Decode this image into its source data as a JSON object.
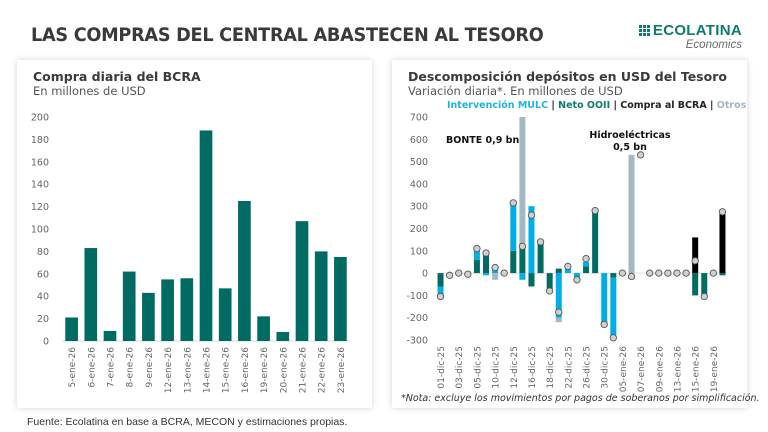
{
  "header": {
    "title": "LAS COMPRAS DEL CENTRAL ABASTECEN AL TESORO",
    "logo_main": "ECOLATINA",
    "logo_sub": "Economics"
  },
  "footer": {
    "source": "Fuente: Ecolatina en base a BCRA, MECON y estimaciones propias."
  },
  "colors": {
    "teal": "#006b62",
    "mulc": "#00aee6",
    "otros": "#a3b9c1",
    "bcra": "#000000",
    "dot": "#d0d0d0"
  },
  "chart_data": [
    {
      "type": "bar",
      "title": "Compra diaria del BCRA",
      "subtitle": "En millones de USD",
      "xlabel": "",
      "ylabel": "",
      "ylim": [
        0,
        200
      ],
      "yticks": [
        0,
        20,
        40,
        60,
        80,
        100,
        120,
        140,
        160,
        180,
        200
      ],
      "grid": false,
      "categories": [
        "5-ene-26",
        "6-ene-26",
        "7-ene-26",
        "8-ene-26",
        "9-ene-26",
        "12-ene-26",
        "13-ene-26",
        "14-ene-26",
        "15-ene-26",
        "16-ene-26",
        "19-ene-26",
        "20-ene-26",
        "21-ene-26",
        "22-ene-26",
        "23-ene-26"
      ],
      "values": [
        21,
        83,
        9,
        62,
        43,
        55,
        56,
        188,
        47,
        125,
        22,
        8,
        107,
        80,
        75
      ]
    },
    {
      "type": "bar",
      "stacked": true,
      "title": "Descomposición depósitos en USD del Tesoro",
      "subtitle": "Variación diaria*. En millones de USD",
      "legend_position": "top",
      "legend": [
        {
          "name": "Intervención MULC",
          "color": "#00aee6"
        },
        {
          "name": "Neto OOII",
          "color": "#006b62"
        },
        {
          "name": "Compra al BCRA",
          "color": "#111111"
        },
        {
          "name": "Otros",
          "color": "#a3b9c1"
        }
      ],
      "separator": "|",
      "ylim": [
        -300,
        700
      ],
      "yticks": [
        -300,
        -200,
        -100,
        0,
        100,
        200,
        300,
        400,
        500,
        600,
        700
      ],
      "grid": false,
      "x_tick_labels": [
        "01-dic-25",
        "03-dic-25",
        "05-dic-25",
        "10-dic-25",
        "12-dic-25",
        "16-dic-25",
        "18-dic-25",
        "22-dic-25",
        "26-dic-25",
        "30-dic-25",
        "05-ene-26",
        "07-ene-26",
        "09-ene-26",
        "13-ene-26",
        "15-ene-26",
        "19-ene-26"
      ],
      "series": [
        {
          "name": "Neto OOII",
          "values": [
            -60,
            0,
            0,
            0,
            60,
            100,
            0,
            0,
            100,
            120,
            -60,
            140,
            -80,
            20,
            0,
            0,
            30,
            280,
            0,
            -20,
            0,
            0,
            0,
            0,
            0,
            0,
            0,
            0,
            -100,
            -100,
            0,
            -10
          ]
        },
        {
          "name": "Intervención MULC",
          "values": [
            -45,
            0,
            0,
            0,
            50,
            -10,
            20,
            0,
            210,
            -30,
            300,
            0,
            0,
            -200,
            20,
            -30,
            20,
            0,
            -230,
            -270,
            0,
            0,
            0,
            0,
            0,
            0,
            0,
            0,
            0,
            0,
            0,
            0
          ]
        },
        {
          "name": "Compra al BCRA",
          "values": [
            0,
            0,
            0,
            0,
            0,
            0,
            0,
            0,
            0,
            0,
            0,
            0,
            0,
            0,
            0,
            0,
            0,
            0,
            0,
            0,
            0,
            0,
            0,
            0,
            0,
            0,
            0,
            0,
            160,
            0,
            0,
            280
          ]
        },
        {
          "name": "Otros",
          "values": [
            0,
            0,
            0,
            0,
            0,
            0,
            -30,
            0,
            0,
            580,
            0,
            0,
            0,
            -20,
            0,
            0,
            0,
            0,
            0,
            0,
            0,
            530,
            0,
            0,
            0,
            0,
            0,
            0,
            0,
            0,
            0,
            0
          ]
        },
        {
          "name": "Total",
          "values": [
            -105,
            -10,
            0,
            -5,
            110,
            90,
            25,
            0,
            315,
            120,
            260,
            140,
            -80,
            -175,
            30,
            -30,
            65,
            280,
            -230,
            -290,
            0,
            -15,
            530,
            0,
            0,
            0,
            0,
            0,
            55,
            -105,
            0,
            275
          ]
        }
      ],
      "annotations": [
        {
          "text": "BONTE 0,9 bn",
          "at_index": 9
        },
        {
          "text": "Hidroeléctricas",
          "text2": "0,5 bn",
          "at_index": 21
        }
      ],
      "note": "*Nota: excluye los movimientos por pagos de soberanos por simplificación."
    }
  ]
}
